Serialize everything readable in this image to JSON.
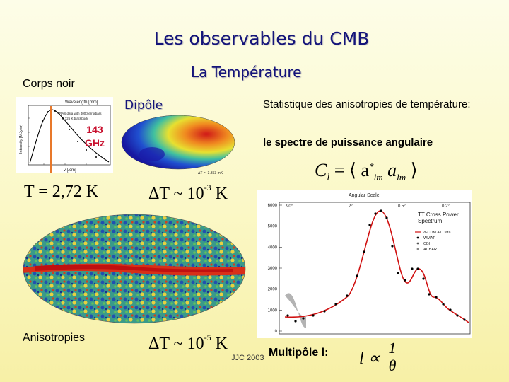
{
  "title": "Les observables du CMB",
  "subtitle": "La Température",
  "left": {
    "corps_noir_label": "Corps noir",
    "frequency_label_line1": "143",
    "frequency_label_line2": "GHz",
    "temperature_equation": "T = 2,72  K",
    "anisotropies_label": "Anisotropies"
  },
  "middle": {
    "dipole_label": "Dipôle",
    "dipole_equation_base": "ΔT ~ 10",
    "dipole_exponent": "-3",
    "dipole_unit": "K",
    "aniso_equation_base": "ΔT ~ 10",
    "aniso_exponent": "-5",
    "aniso_unit": "K"
  },
  "right": {
    "statistique_text": "Statistique des anisotropies de température:",
    "spectre_label": "le spectre de puissance angulaire",
    "cl_formula_lhs": "C",
    "cl_formula_sub": "l",
    "cl_formula_rhs": "= ⟨ a",
    "cl_formula_rhs2": " a",
    "cl_formula_close": "⟩",
    "cl_sub_lm": "lm",
    "cl_star": "*"
  },
  "plot": {
    "top_axis_title": "Angular Scale",
    "top_ticks": [
      "90°",
      "2°",
      "0.5°",
      "0.2°"
    ],
    "y_ticks": [
      "6000",
      "5000",
      "4000",
      "3000",
      "2000",
      "1000",
      "0"
    ],
    "legend_title_line1": "TT Cross Power",
    "legend_title_line2": "Spectrum",
    "legend_entries": [
      "Λ-CDM All Data",
      "WMAP",
      "CBI",
      "ACBAR"
    ],
    "colors": {
      "model_line": "#d01010",
      "points": "#000000",
      "band": "#a0a0a0"
    }
  },
  "blackbody": {
    "top_label": "Wavelength [mm]",
    "y_label": "Intensity [MJy/sr]",
    "x_label": "ν [/cm]",
    "legend_line1": "FIRAS data with 400σ errorbars",
    "legend_line2": "2.725 K blackbody"
  },
  "dipole_map": {
    "caption": "ΔT = -3.353 mK"
  },
  "footer": {
    "credit": "JJC 2003",
    "multipole_label": "Multipôle l:",
    "relation_lhs": "l ∝",
    "relation_num": "1",
    "relation_den": "θ"
  }
}
